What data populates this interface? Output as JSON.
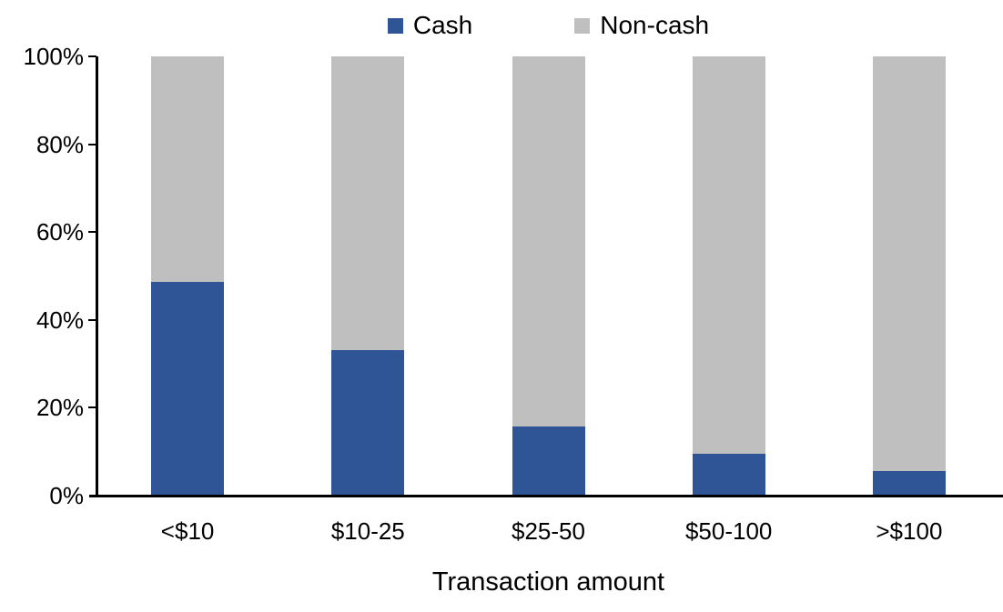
{
  "chart_data": {
    "type": "bar",
    "variant": "stacked-100-percent",
    "title": "",
    "xlabel": "Transaction amount",
    "ylabel": "",
    "categories": [
      "<$10",
      "$10-25",
      "$25-50",
      "$50-100",
      ">$100"
    ],
    "series": [
      {
        "name": "Cash",
        "color": "#2F5597",
        "values": [
          48.7,
          33.1,
          15.7,
          9.5,
          5.6
        ]
      },
      {
        "name": "Non-cash",
        "color": "#BFBFBF",
        "values": [
          51.3,
          66.9,
          84.3,
          90.5,
          94.4
        ]
      }
    ],
    "y_ticks": [
      "0%",
      "20%",
      "40%",
      "60%",
      "80%",
      "100%"
    ],
    "y_tick_values": [
      0,
      20,
      40,
      60,
      80,
      100
    ],
    "ylim": [
      0,
      100
    ],
    "grid": false,
    "legend_position": "top-center"
  },
  "colors": {
    "axis": "#000000",
    "text": "#000000",
    "background": "#FFFFFF"
  }
}
